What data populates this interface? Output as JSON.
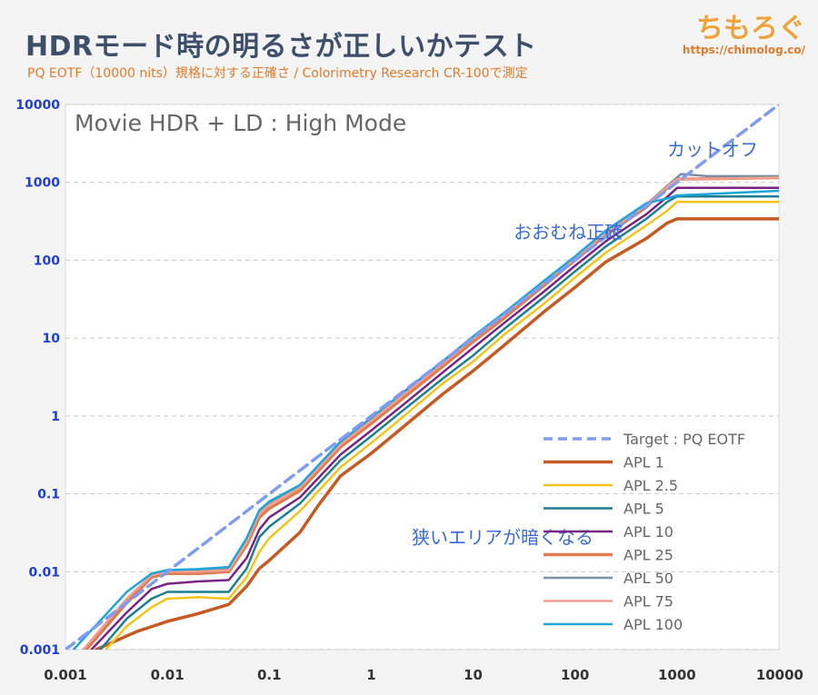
{
  "header": {
    "title": "HDRモード時の明るさが正しいかテスト",
    "subtitle": "PQ EOTF（10000 nits）規格に対する正確さ / Colorimetry Research CR-100で測定",
    "logo_name": "ちもろぐ",
    "logo_url": "https://chimolog.co/"
  },
  "chart_data": {
    "type": "line",
    "title": "Movie HDR + LD : High Mode",
    "x_scale": "log",
    "y_scale": "log",
    "xlim": [
      0.001,
      10000
    ],
    "ylim": [
      0.001,
      10000
    ],
    "x_ticks": [
      {
        "value": 0.001,
        "label": "0.001"
      },
      {
        "value": 0.01,
        "label": "0.01"
      },
      {
        "value": 0.1,
        "label": "0.1"
      },
      {
        "value": 1,
        "label": "1"
      },
      {
        "value": 10,
        "label": "10"
      },
      {
        "value": 100,
        "label": "100"
      },
      {
        "value": 1000,
        "label": "1000"
      },
      {
        "value": 10000,
        "label": "10000"
      }
    ],
    "y_ticks": [
      {
        "value": 0.001,
        "label": "0.001"
      },
      {
        "value": 0.01,
        "label": "0.01"
      },
      {
        "value": 0.1,
        "label": "0.1"
      },
      {
        "value": 1,
        "label": "1"
      },
      {
        "value": 10,
        "label": "10"
      },
      {
        "value": 100,
        "label": "100"
      },
      {
        "value": 1000,
        "label": "1000"
      },
      {
        "value": 10000,
        "label": "10000"
      }
    ],
    "grid": true,
    "legend_position": "bottom-right",
    "annotations": [
      {
        "text": "カットオフ",
        "x": 800,
        "y": 2200
      },
      {
        "text": "おおむね正確",
        "x": 25,
        "y": 190
      },
      {
        "text": "狭いエリアが暗くなる",
        "x": 2.5,
        "y": 0.023
      }
    ],
    "series": [
      {
        "name": "Target : PQ EOTF",
        "color": "#7f9cf0",
        "dashed": true,
        "width": 3.5,
        "points": [
          [
            0.001,
            0.001
          ],
          [
            10000,
            10000
          ]
        ]
      },
      {
        "name": "APL 1",
        "color": "#c55a22",
        "dashed": false,
        "width": 3.5,
        "points": [
          [
            0.002,
            0.001
          ],
          [
            0.005,
            0.0017
          ],
          [
            0.01,
            0.0023
          ],
          [
            0.02,
            0.0029
          ],
          [
            0.04,
            0.0038
          ],
          [
            0.06,
            0.0065
          ],
          [
            0.08,
            0.011
          ],
          [
            0.1,
            0.014
          ],
          [
            0.2,
            0.032
          ],
          [
            0.3,
            0.07
          ],
          [
            0.5,
            0.17
          ],
          [
            1,
            0.33
          ],
          [
            2,
            0.7
          ],
          [
            5,
            1.9
          ],
          [
            10,
            3.8
          ],
          [
            20,
            8
          ],
          [
            50,
            22
          ],
          [
            100,
            45
          ],
          [
            200,
            95
          ],
          [
            500,
            190
          ],
          [
            800,
            300
          ],
          [
            1000,
            340
          ],
          [
            10000,
            340
          ]
        ]
      },
      {
        "name": "APL 2.5",
        "color": "#f2c41a",
        "dashed": false,
        "width": 2.5,
        "points": [
          [
            0.0025,
            0.001
          ],
          [
            0.004,
            0.002
          ],
          [
            0.007,
            0.0035
          ],
          [
            0.01,
            0.0045
          ],
          [
            0.02,
            0.0047
          ],
          [
            0.04,
            0.0045
          ],
          [
            0.06,
            0.0085
          ],
          [
            0.08,
            0.018
          ],
          [
            0.1,
            0.027
          ],
          [
            0.2,
            0.06
          ],
          [
            0.5,
            0.22
          ],
          [
            1,
            0.45
          ],
          [
            2,
            0.95
          ],
          [
            5,
            2.6
          ],
          [
            10,
            5
          ],
          [
            20,
            11
          ],
          [
            50,
            28
          ],
          [
            100,
            60
          ],
          [
            200,
            125
          ],
          [
            500,
            280
          ],
          [
            800,
            430
          ],
          [
            1000,
            560
          ],
          [
            10000,
            560
          ]
        ]
      },
      {
        "name": "APL 5",
        "color": "#1b7f93",
        "dashed": false,
        "width": 2.5,
        "points": [
          [
            0.0022,
            0.001
          ],
          [
            0.004,
            0.0025
          ],
          [
            0.007,
            0.0045
          ],
          [
            0.01,
            0.0055
          ],
          [
            0.02,
            0.0055
          ],
          [
            0.04,
            0.0055
          ],
          [
            0.06,
            0.011
          ],
          [
            0.08,
            0.028
          ],
          [
            0.1,
            0.038
          ],
          [
            0.2,
            0.075
          ],
          [
            0.5,
            0.27
          ],
          [
            1,
            0.55
          ],
          [
            2,
            1.15
          ],
          [
            5,
            3
          ],
          [
            10,
            6
          ],
          [
            20,
            13
          ],
          [
            50,
            34
          ],
          [
            100,
            72
          ],
          [
            200,
            150
          ],
          [
            500,
            340
          ],
          [
            800,
            560
          ],
          [
            1000,
            660
          ],
          [
            10000,
            660
          ]
        ]
      },
      {
        "name": "APL 10",
        "color": "#7a2284",
        "dashed": false,
        "width": 2.5,
        "points": [
          [
            0.0018,
            0.001
          ],
          [
            0.004,
            0.003
          ],
          [
            0.007,
            0.006
          ],
          [
            0.01,
            0.007
          ],
          [
            0.02,
            0.0075
          ],
          [
            0.04,
            0.0078
          ],
          [
            0.06,
            0.015
          ],
          [
            0.08,
            0.035
          ],
          [
            0.1,
            0.05
          ],
          [
            0.2,
            0.09
          ],
          [
            0.5,
            0.32
          ],
          [
            1,
            0.65
          ],
          [
            2,
            1.35
          ],
          [
            5,
            3.6
          ],
          [
            10,
            7.5
          ],
          [
            20,
            15.5
          ],
          [
            50,
            40
          ],
          [
            100,
            85
          ],
          [
            200,
            175
          ],
          [
            500,
            390
          ],
          [
            800,
            650
          ],
          [
            1000,
            850
          ],
          [
            10000,
            850
          ]
        ]
      },
      {
        "name": "APL 25",
        "color": "#e27b4f",
        "dashed": false,
        "width": 3.5,
        "points": [
          [
            0.0016,
            0.001
          ],
          [
            0.004,
            0.004
          ],
          [
            0.007,
            0.0085
          ],
          [
            0.01,
            0.0095
          ],
          [
            0.02,
            0.0095
          ],
          [
            0.04,
            0.01
          ],
          [
            0.06,
            0.022
          ],
          [
            0.08,
            0.05
          ],
          [
            0.1,
            0.065
          ],
          [
            0.2,
            0.11
          ],
          [
            0.5,
            0.4
          ],
          [
            1,
            0.8
          ],
          [
            2,
            1.65
          ],
          [
            5,
            4.3
          ],
          [
            10,
            9
          ],
          [
            20,
            18
          ],
          [
            50,
            48
          ],
          [
            100,
            100
          ],
          [
            200,
            210
          ],
          [
            500,
            480
          ],
          [
            800,
            850
          ],
          [
            1000,
            1100
          ],
          [
            10000,
            1150
          ]
        ]
      },
      {
        "name": "APL 50",
        "color": "#7b8fa3",
        "dashed": false,
        "width": 2.5,
        "points": [
          [
            0.0015,
            0.001
          ],
          [
            0.004,
            0.0045
          ],
          [
            0.007,
            0.009
          ],
          [
            0.01,
            0.0105
          ],
          [
            0.02,
            0.0105
          ],
          [
            0.04,
            0.011
          ],
          [
            0.06,
            0.025
          ],
          [
            0.08,
            0.058
          ],
          [
            0.1,
            0.075
          ],
          [
            0.2,
            0.125
          ],
          [
            0.5,
            0.45
          ],
          [
            1,
            0.9
          ],
          [
            2,
            1.85
          ],
          [
            5,
            4.8
          ],
          [
            10,
            10
          ],
          [
            20,
            20
          ],
          [
            50,
            53
          ],
          [
            100,
            108
          ],
          [
            200,
            230
          ],
          [
            500,
            520
          ],
          [
            800,
            900
          ],
          [
            1100,
            1280
          ],
          [
            2000,
            1200
          ],
          [
            10000,
            1200
          ]
        ]
      },
      {
        "name": "APL 75",
        "color": "#f0a090",
        "dashed": false,
        "width": 2.5,
        "points": [
          [
            0.0015,
            0.001
          ],
          [
            0.004,
            0.0045
          ],
          [
            0.007,
            0.009
          ],
          [
            0.01,
            0.01
          ],
          [
            0.02,
            0.01
          ],
          [
            0.04,
            0.0105
          ],
          [
            0.06,
            0.024
          ],
          [
            0.08,
            0.056
          ],
          [
            0.1,
            0.072
          ],
          [
            0.2,
            0.12
          ],
          [
            0.5,
            0.43
          ],
          [
            1,
            0.87
          ],
          [
            2,
            1.8
          ],
          [
            5,
            4.7
          ],
          [
            10,
            9.8
          ],
          [
            20,
            19.5
          ],
          [
            50,
            52
          ],
          [
            100,
            106
          ],
          [
            200,
            225
          ],
          [
            500,
            510
          ],
          [
            800,
            880
          ],
          [
            1000,
            1100
          ],
          [
            10000,
            1150
          ]
        ]
      },
      {
        "name": "APL 100",
        "color": "#1ea6d8",
        "dashed": false,
        "width": 2.5,
        "points": [
          [
            0.0012,
            0.001
          ],
          [
            0.004,
            0.0055
          ],
          [
            0.007,
            0.0095
          ],
          [
            0.01,
            0.0105
          ],
          [
            0.02,
            0.0108
          ],
          [
            0.04,
            0.0115
          ],
          [
            0.06,
            0.027
          ],
          [
            0.08,
            0.062
          ],
          [
            0.1,
            0.08
          ],
          [
            0.2,
            0.13
          ],
          [
            0.5,
            0.47
          ],
          [
            1,
            0.95
          ],
          [
            2,
            1.95
          ],
          [
            5,
            5
          ],
          [
            10,
            10.5
          ],
          [
            20,
            21
          ],
          [
            50,
            55
          ],
          [
            100,
            112
          ],
          [
            200,
            240
          ],
          [
            500,
            540
          ],
          [
            800,
            620
          ],
          [
            1000,
            680
          ],
          [
            10000,
            780
          ]
        ]
      }
    ]
  }
}
